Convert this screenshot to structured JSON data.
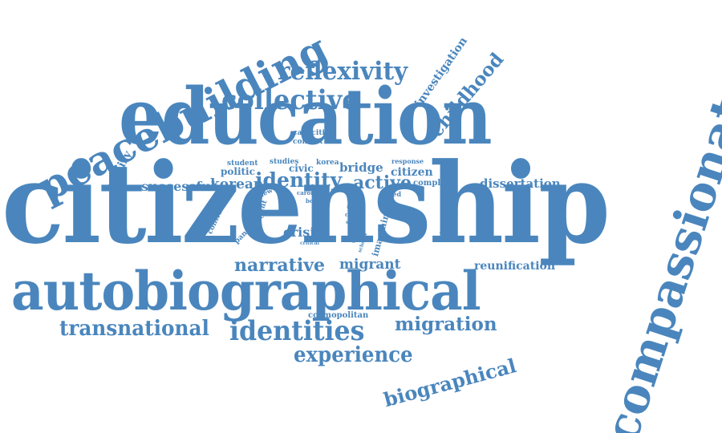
{
  "color": "#4a86bd",
  "words": [
    {
      "text": "citizenship"
    },
    {
      "text": "education"
    },
    {
      "text": "autobiographical"
    },
    {
      "text": "compassionate"
    },
    {
      "text": "peacebuilding"
    },
    {
      "text": "collective"
    },
    {
      "text": "reflexivity"
    },
    {
      "text": "identity"
    },
    {
      "text": "identities"
    },
    {
      "text": "narrative"
    },
    {
      "text": "transnational"
    },
    {
      "text": "experience"
    },
    {
      "text": "migration"
    },
    {
      "text": "biographical"
    },
    {
      "text": "childhood"
    },
    {
      "text": "investigation"
    },
    {
      "text": "successful"
    },
    {
      "text": "korean"
    },
    {
      "text": "active"
    },
    {
      "text": "bridge"
    },
    {
      "text": "citizen"
    },
    {
      "text": "dissertation"
    },
    {
      "text": "migrant"
    },
    {
      "text": "reunification"
    },
    {
      "text": "crisis"
    },
    {
      "text": "cosmopolitan"
    },
    {
      "text": "inquiry"
    },
    {
      "text": "student"
    },
    {
      "text": "politic"
    },
    {
      "text": "studies"
    },
    {
      "text": "civic"
    },
    {
      "text": "korea"
    },
    {
      "text": "response"
    },
    {
      "text": "capacities"
    },
    {
      "text": "conflict"
    },
    {
      "text": "complete"
    },
    {
      "text": "edited"
    },
    {
      "text": "imagining"
    },
    {
      "text": "contribute"
    },
    {
      "text": "pandemic"
    },
    {
      "text": "review"
    },
    {
      "text": "different"
    },
    {
      "text": "context"
    },
    {
      "text": "study"
    },
    {
      "text": "caron"
    },
    {
      "text": "book"
    },
    {
      "text": "ideas"
    },
    {
      "text": "guide"
    },
    {
      "text": "carter"
    },
    {
      "text": "society"
    },
    {
      "text": "writing"
    },
    {
      "text": "schools"
    },
    {
      "text": "critical"
    },
    {
      "text": "reflection"
    }
  ]
}
